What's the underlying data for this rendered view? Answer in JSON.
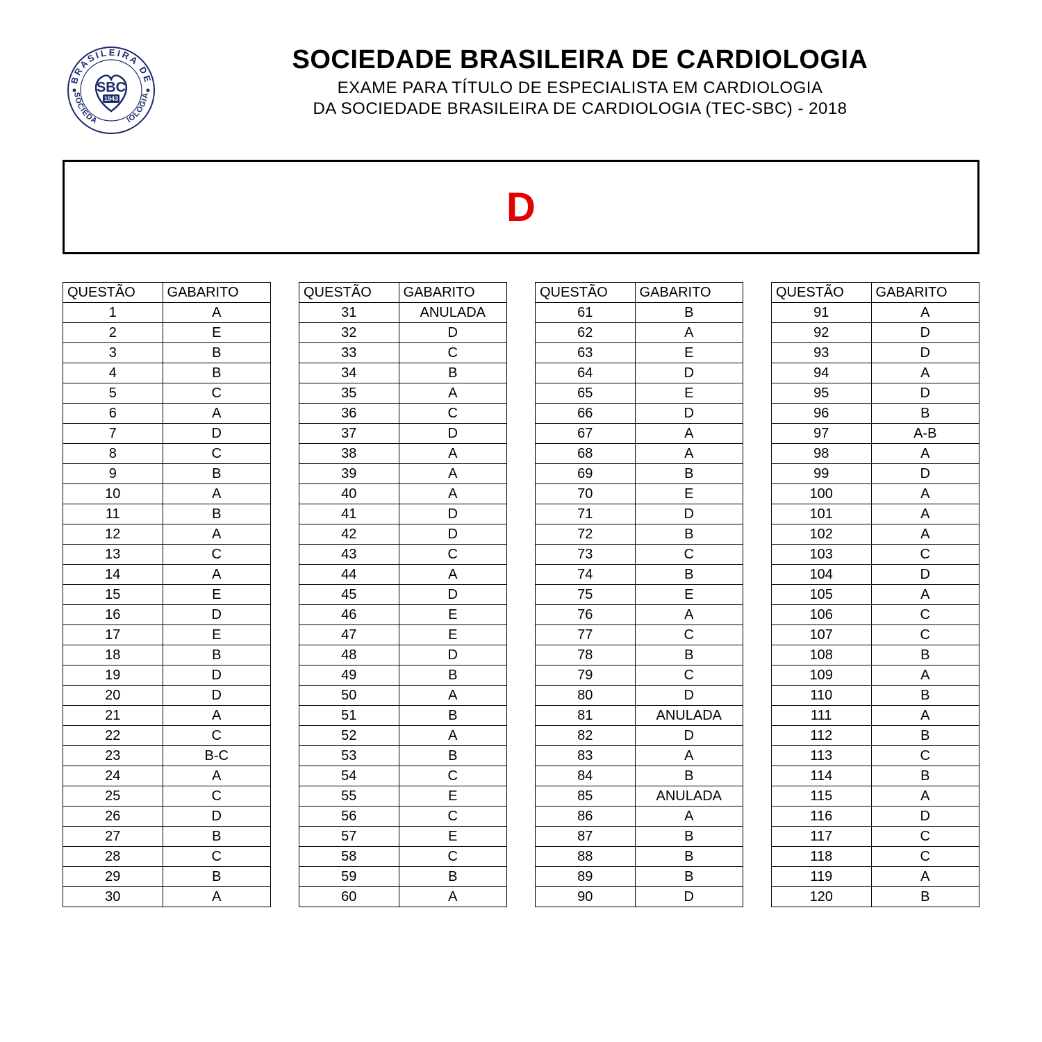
{
  "header": {
    "logo_text_top": "BRASILEIRA",
    "logo_text_left": "SOCIEDADE",
    "logo_text_right": "DE",
    "logo_text_bottom": "CARDIOLOGIA",
    "logo_center": "SBC",
    "logo_year": "1943",
    "title_main": "SOCIEDADE BRASILEIRA DE CARDIOLOGIA",
    "title_sub1": "EXAME PARA TÍTULO DE ESPECIALISTA EM CARDIOLOGIA",
    "title_sub2": "DA SOCIEDADE BRASILEIRA DE CARDIOLOGIA (TEC-SBC) - 2018"
  },
  "letter": "D",
  "columns_header": {
    "q": "QUESTÃO",
    "g": "GABARITO"
  },
  "colors": {
    "letter": "#e30000",
    "border": "#000000",
    "text": "#000000",
    "background": "#ffffff",
    "logo_stroke": "#1a2a6c"
  },
  "tables": [
    [
      {
        "q": "1",
        "g": "A"
      },
      {
        "q": "2",
        "g": "E"
      },
      {
        "q": "3",
        "g": "B"
      },
      {
        "q": "4",
        "g": "B"
      },
      {
        "q": "5",
        "g": "C"
      },
      {
        "q": "6",
        "g": "A"
      },
      {
        "q": "7",
        "g": "D"
      },
      {
        "q": "8",
        "g": "C"
      },
      {
        "q": "9",
        "g": "B"
      },
      {
        "q": "10",
        "g": "A"
      },
      {
        "q": "11",
        "g": "B"
      },
      {
        "q": "12",
        "g": "A"
      },
      {
        "q": "13",
        "g": "C"
      },
      {
        "q": "14",
        "g": "A"
      },
      {
        "q": "15",
        "g": "E"
      },
      {
        "q": "16",
        "g": "D"
      },
      {
        "q": "17",
        "g": "E"
      },
      {
        "q": "18",
        "g": "B"
      },
      {
        "q": "19",
        "g": "D"
      },
      {
        "q": "20",
        "g": "D"
      },
      {
        "q": "21",
        "g": "A"
      },
      {
        "q": "22",
        "g": "C"
      },
      {
        "q": "23",
        "g": "B-C"
      },
      {
        "q": "24",
        "g": "A"
      },
      {
        "q": "25",
        "g": "C"
      },
      {
        "q": "26",
        "g": "D"
      },
      {
        "q": "27",
        "g": "B"
      },
      {
        "q": "28",
        "g": "C"
      },
      {
        "q": "29",
        "g": "B"
      },
      {
        "q": "30",
        "g": "A"
      }
    ],
    [
      {
        "q": "31",
        "g": "ANULADA"
      },
      {
        "q": "32",
        "g": "D"
      },
      {
        "q": "33",
        "g": "C"
      },
      {
        "q": "34",
        "g": "B"
      },
      {
        "q": "35",
        "g": "A"
      },
      {
        "q": "36",
        "g": "C"
      },
      {
        "q": "37",
        "g": "D"
      },
      {
        "q": "38",
        "g": "A"
      },
      {
        "q": "39",
        "g": "A"
      },
      {
        "q": "40",
        "g": "A"
      },
      {
        "q": "41",
        "g": "D"
      },
      {
        "q": "42",
        "g": "D"
      },
      {
        "q": "43",
        "g": "C"
      },
      {
        "q": "44",
        "g": "A"
      },
      {
        "q": "45",
        "g": "D"
      },
      {
        "q": "46",
        "g": "E"
      },
      {
        "q": "47",
        "g": "E"
      },
      {
        "q": "48",
        "g": "D"
      },
      {
        "q": "49",
        "g": "B"
      },
      {
        "q": "50",
        "g": "A"
      },
      {
        "q": "51",
        "g": "B"
      },
      {
        "q": "52",
        "g": "A"
      },
      {
        "q": "53",
        "g": "B"
      },
      {
        "q": "54",
        "g": "C"
      },
      {
        "q": "55",
        "g": "E"
      },
      {
        "q": "56",
        "g": "C"
      },
      {
        "q": "57",
        "g": "E"
      },
      {
        "q": "58",
        "g": "C"
      },
      {
        "q": "59",
        "g": "B"
      },
      {
        "q": "60",
        "g": "A"
      }
    ],
    [
      {
        "q": "61",
        "g": "B"
      },
      {
        "q": "62",
        "g": "A"
      },
      {
        "q": "63",
        "g": "E"
      },
      {
        "q": "64",
        "g": "D"
      },
      {
        "q": "65",
        "g": "E"
      },
      {
        "q": "66",
        "g": "D"
      },
      {
        "q": "67",
        "g": "A"
      },
      {
        "q": "68",
        "g": "A"
      },
      {
        "q": "69",
        "g": "B"
      },
      {
        "q": "70",
        "g": "E"
      },
      {
        "q": "71",
        "g": "D"
      },
      {
        "q": "72",
        "g": "B"
      },
      {
        "q": "73",
        "g": "C"
      },
      {
        "q": "74",
        "g": "B"
      },
      {
        "q": "75",
        "g": "E"
      },
      {
        "q": "76",
        "g": "A"
      },
      {
        "q": "77",
        "g": "C"
      },
      {
        "q": "78",
        "g": "B"
      },
      {
        "q": "79",
        "g": "C"
      },
      {
        "q": "80",
        "g": "D"
      },
      {
        "q": "81",
        "g": "ANULADA"
      },
      {
        "q": "82",
        "g": "D"
      },
      {
        "q": "83",
        "g": "A"
      },
      {
        "q": "84",
        "g": "B"
      },
      {
        "q": "85",
        "g": "ANULADA"
      },
      {
        "q": "86",
        "g": "A"
      },
      {
        "q": "87",
        "g": "B"
      },
      {
        "q": "88",
        "g": "B"
      },
      {
        "q": "89",
        "g": "B"
      },
      {
        "q": "90",
        "g": "D"
      }
    ],
    [
      {
        "q": "91",
        "g": "A"
      },
      {
        "q": "92",
        "g": "D"
      },
      {
        "q": "93",
        "g": "D"
      },
      {
        "q": "94",
        "g": "A"
      },
      {
        "q": "95",
        "g": "D"
      },
      {
        "q": "96",
        "g": "B"
      },
      {
        "q": "97",
        "g": "A-B"
      },
      {
        "q": "98",
        "g": "A"
      },
      {
        "q": "99",
        "g": "D"
      },
      {
        "q": "100",
        "g": "A"
      },
      {
        "q": "101",
        "g": "A"
      },
      {
        "q": "102",
        "g": "A"
      },
      {
        "q": "103",
        "g": "C"
      },
      {
        "q": "104",
        "g": "D"
      },
      {
        "q": "105",
        "g": "A"
      },
      {
        "q": "106",
        "g": "C"
      },
      {
        "q": "107",
        "g": "C"
      },
      {
        "q": "108",
        "g": "B"
      },
      {
        "q": "109",
        "g": "A"
      },
      {
        "q": "110",
        "g": "B"
      },
      {
        "q": "111",
        "g": "A"
      },
      {
        "q": "112",
        "g": "B"
      },
      {
        "q": "113",
        "g": "C"
      },
      {
        "q": "114",
        "g": "B"
      },
      {
        "q": "115",
        "g": "A"
      },
      {
        "q": "116",
        "g": "D"
      },
      {
        "q": "117",
        "g": "C"
      },
      {
        "q": "118",
        "g": "C"
      },
      {
        "q": "119",
        "g": "A"
      },
      {
        "q": "120",
        "g": "B"
      }
    ]
  ]
}
